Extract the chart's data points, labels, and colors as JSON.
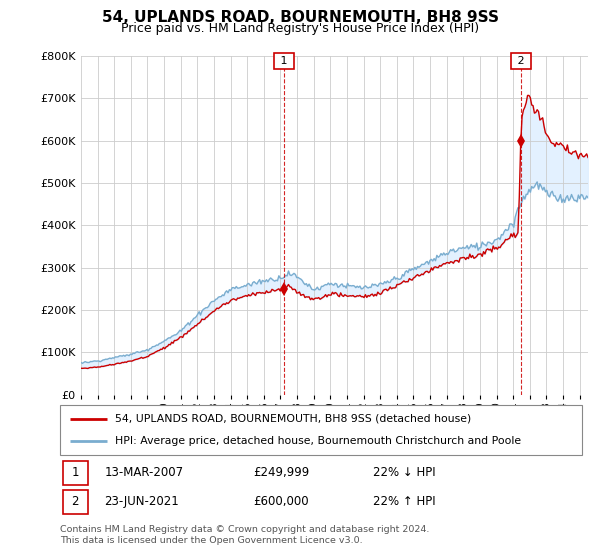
{
  "title": "54, UPLANDS ROAD, BOURNEMOUTH, BH8 9SS",
  "subtitle": "Price paid vs. HM Land Registry's House Price Index (HPI)",
  "title_fontsize": 11,
  "subtitle_fontsize": 9,
  "ylim": [
    0,
    800000
  ],
  "yticks": [
    0,
    100000,
    200000,
    300000,
    400000,
    500000,
    600000,
    700000,
    800000
  ],
  "ytick_labels": [
    "£0",
    "£100K",
    "£200K",
    "£300K",
    "£400K",
    "£500K",
    "£600K",
    "£700K",
    "£800K"
  ],
  "xlim_start": 1995.0,
  "xlim_end": 2025.5,
  "line1_color": "#cc0000",
  "line2_color": "#7aadcf",
  "fill_color": "#ddeeff",
  "point1_x": 2007.2,
  "point1_y": 249999,
  "point2_x": 2021.47,
  "point2_y": 600000,
  "point1_date": "13-MAR-2007",
  "point1_price": "£249,999",
  "point1_hpi": "22% ↓ HPI",
  "point2_date": "23-JUN-2021",
  "point2_price": "£600,000",
  "point2_hpi": "22% ↑ HPI",
  "legend_line1": "54, UPLANDS ROAD, BOURNEMOUTH, BH8 9SS (detached house)",
  "legend_line2": "HPI: Average price, detached house, Bournemouth Christchurch and Poole",
  "footer": "Contains HM Land Registry data © Crown copyright and database right 2024.\nThis data is licensed under the Open Government Licence v3.0."
}
